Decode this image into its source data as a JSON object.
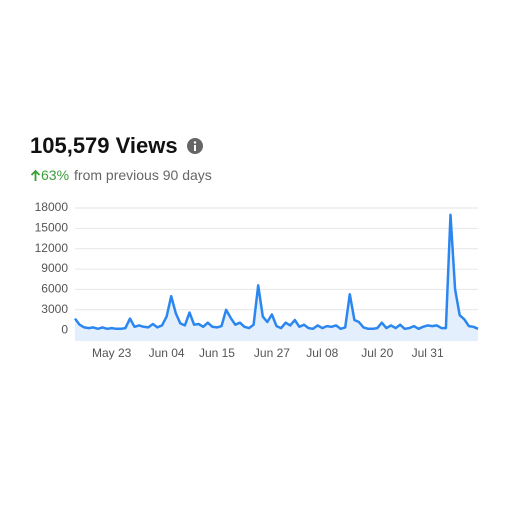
{
  "header": {
    "title": "105,579 Views",
    "change": "63%",
    "change_text": "from previous 90 days"
  },
  "chart_data": {
    "type": "line",
    "categories": [
      null,
      null,
      null,
      null,
      null,
      null,
      null,
      null,
      "May 23",
      null,
      null,
      null,
      null,
      null,
      null,
      null,
      null,
      null,
      null,
      null,
      "Jun 04",
      null,
      null,
      null,
      null,
      null,
      null,
      null,
      null,
      null,
      null,
      "Jun 15",
      null,
      null,
      null,
      null,
      null,
      null,
      null,
      null,
      null,
      null,
      null,
      "Jun 27",
      null,
      null,
      null,
      null,
      null,
      null,
      null,
      null,
      null,
      null,
      "Jul 08",
      null,
      null,
      null,
      null,
      null,
      null,
      null,
      null,
      null,
      null,
      null,
      "Jul 20",
      null,
      null,
      null,
      null,
      null,
      null,
      null,
      null,
      null,
      null,
      "Jul 31",
      null,
      null,
      null,
      null,
      null,
      null,
      null,
      null,
      null,
      null,
      null
    ],
    "values": [
      1700,
      800,
      400,
      300,
      400,
      200,
      400,
      200,
      300,
      200,
      200,
      300,
      1700,
      500,
      700,
      500,
      400,
      900,
      400,
      700,
      2000,
      5000,
      2500,
      1000,
      700,
      2600,
      800,
      900,
      500,
      1100,
      500,
      400,
      600,
      3000,
      1800,
      800,
      1100,
      500,
      300,
      800,
      6600,
      2000,
      1200,
      2300,
      600,
      300,
      1100,
      700,
      1500,
      500,
      800,
      300,
      200,
      700,
      300,
      600,
      500,
      700,
      200,
      400,
      5300,
      1500,
      1200,
      400,
      200,
      200,
      300,
      1100,
      300,
      700,
      300,
      800,
      200,
      300,
      600,
      200,
      500,
      700,
      600,
      700,
      300,
      300,
      17000,
      6000,
      2200,
      1600,
      600,
      500,
      200
    ],
    "color": "#2b87ef",
    "fill": "#e3effc",
    "ylim": [
      -1600,
      18000
    ],
    "yticks": [
      0,
      3000,
      6000,
      9000,
      12000,
      15000,
      18000
    ],
    "grid": true
  }
}
